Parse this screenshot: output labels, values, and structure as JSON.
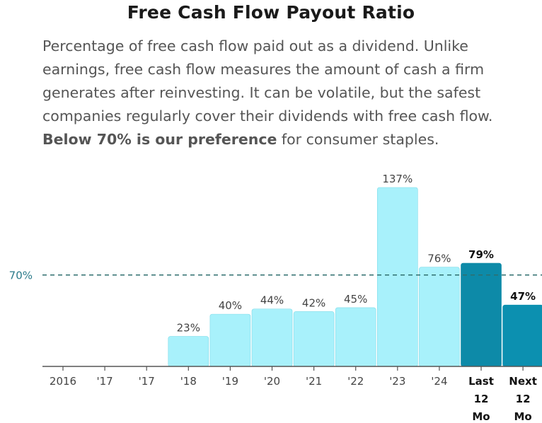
{
  "header": {
    "title": "Free Cash Flow Payout Ratio",
    "description_text": "Percentage of free cash flow paid out as a dividend. Unlike earnings, free cash flow measures the amount of cash a firm generates after reinvesting. It can be volatile, but the safest companies regularly cover their dividends with free cash flow.",
    "description_bold": "Below 70% is our preference",
    "description_tail": "for consumer staples."
  },
  "colors": {
    "historical_bar": "#a8f1fb",
    "historical_bar_stroke": "#7fdbe8",
    "last_bar": "#0d8aa8",
    "next_bar": "#0c90b0",
    "reference_line": "#2f6f6f",
    "reference_label": "#2a7a8a",
    "axis": "#555555"
  },
  "chart_data": {
    "type": "bar",
    "title": "Free Cash Flow Payout Ratio",
    "categories": [
      "2016",
      "'17",
      "'17",
      "'18",
      "'19",
      "'20",
      "'21",
      "'22",
      "'23",
      "'24",
      "Last 12 Mo",
      "Next 12 Mo"
    ],
    "category_lines": [
      [
        "2016"
      ],
      [
        "'17"
      ],
      [
        "'17"
      ],
      [
        "'18"
      ],
      [
        "'19"
      ],
      [
        "'20"
      ],
      [
        "'21"
      ],
      [
        "'22"
      ],
      [
        "'23"
      ],
      [
        "'24"
      ],
      [
        "Last",
        "12",
        "Mo"
      ],
      [
        "Next",
        "12",
        "Mo"
      ]
    ],
    "values": [
      null,
      null,
      null,
      23,
      40,
      44,
      42,
      45,
      137,
      76,
      79,
      47
    ],
    "value_labels": [
      "",
      "",
      "",
      "23%",
      "40%",
      "44%",
      "42%",
      "45%",
      "137%",
      "76%",
      "79%",
      "47%"
    ],
    "highlight": [
      false,
      false,
      false,
      false,
      false,
      false,
      false,
      false,
      false,
      false,
      true,
      true
    ],
    "reference_line": {
      "value": 70,
      "label": "70%"
    },
    "xlabel": "",
    "ylabel": "",
    "ylim": [
      0,
      137
    ]
  }
}
